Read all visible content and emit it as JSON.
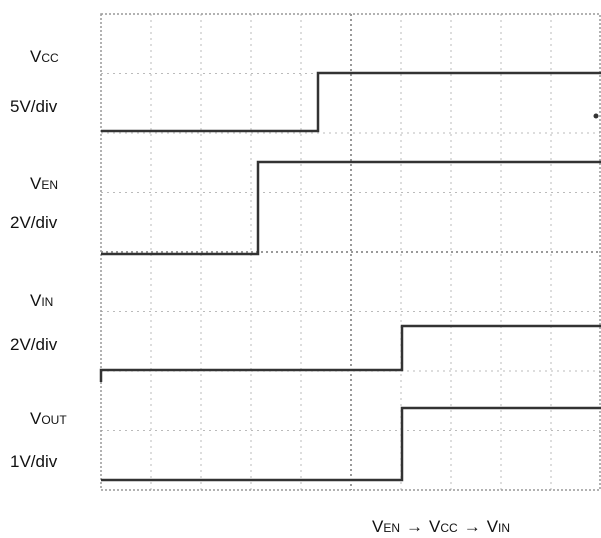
{
  "channels": [
    {
      "symbol": "V",
      "subscript": "CC",
      "scale": "5V/div"
    },
    {
      "symbol": "V",
      "subscript": "EN",
      "scale": "2V/div"
    },
    {
      "symbol": "V",
      "subscript": "IN",
      "scale": "2V/div"
    },
    {
      "symbol": "V",
      "subscript": "OUT",
      "scale": "1V/div"
    }
  ],
  "sequence": {
    "items": [
      {
        "symbol": "V",
        "subscript": "EN"
      },
      {
        "symbol": "V",
        "subscript": "CC"
      },
      {
        "symbol": "V",
        "subscript": "IN"
      }
    ],
    "separator": "→"
  }
}
